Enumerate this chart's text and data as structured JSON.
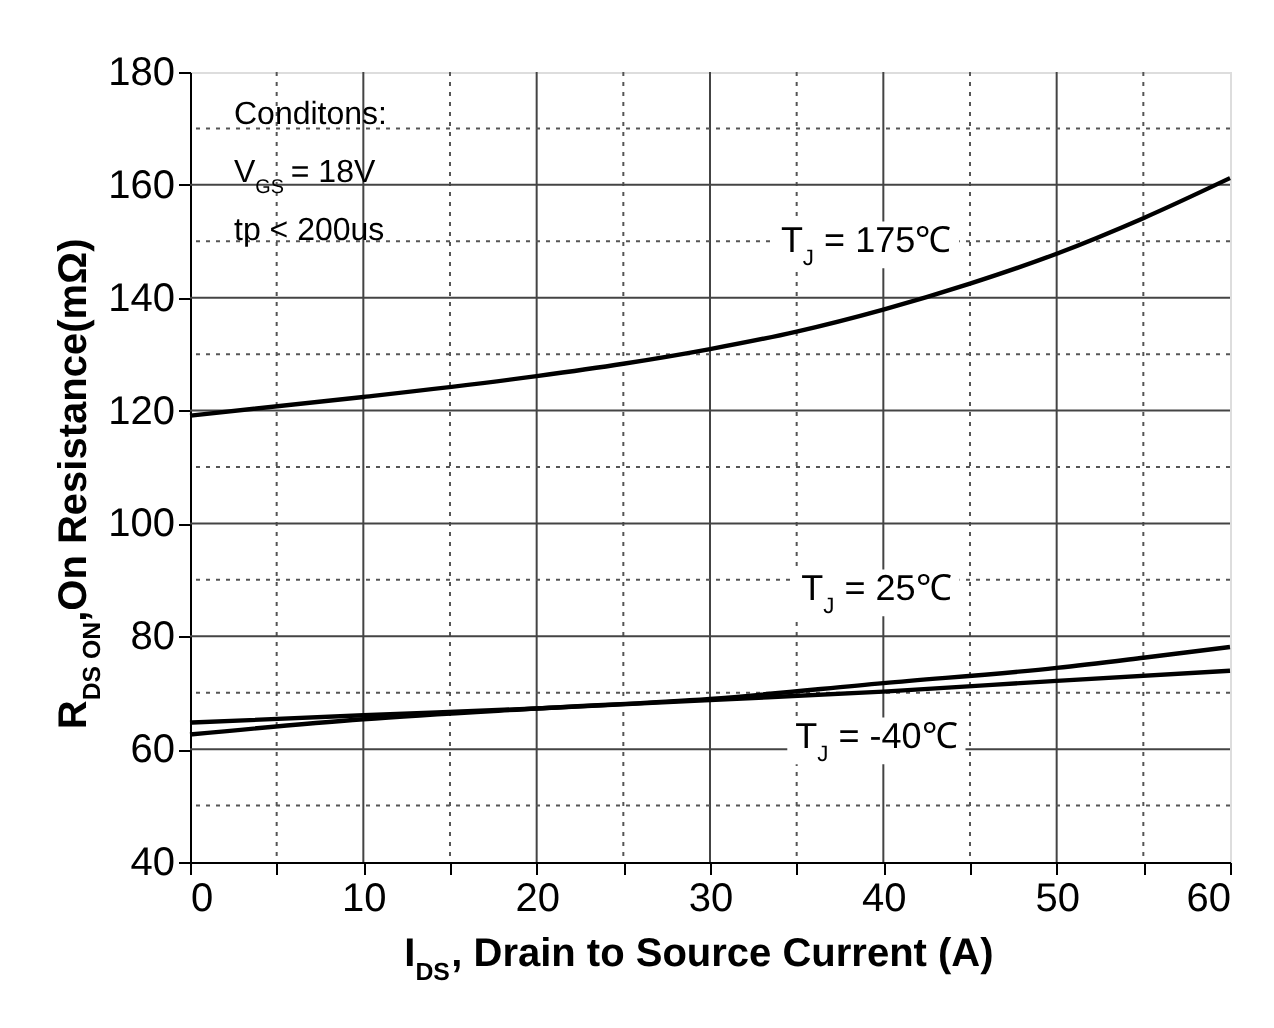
{
  "chart_data": {
    "type": "line",
    "xlabel": "I$_{DS}$, Drain to Source Current  (A)",
    "ylabel": "R$_{DS ON}$,On Resistance(mΩ)",
    "x": [
      0,
      10,
      20,
      25,
      30,
      35,
      40,
      45,
      50,
      55,
      60
    ],
    "series": [
      {
        "color": "#000000",
        "values": [
          119.1,
          122.4,
          126.1,
          128.3,
          130.9,
          134.0,
          137.9,
          142.5,
          147.8,
          154.1,
          161.2
        ]
      },
      {
        "color": "#000000",
        "x": [
          0,
          10,
          20,
          30,
          40,
          50,
          55,
          60
        ],
        "values": [
          62.6,
          65.3,
          67.2,
          68.9,
          71.7,
          74.4,
          76.2,
          78.1
        ]
      },
      {
        "color": "#000000",
        "x": [
          0,
          10,
          20,
          30,
          40,
          50,
          60
        ],
        "values": [
          64.7,
          66.0,
          67.2,
          68.7,
          70.2,
          72.1,
          73.9
        ]
      }
    ],
    "xlim": [
      0,
      60
    ],
    "xticks": [
      0,
      {
        "value": 5,
        "label": null
      },
      10,
      {
        "value": 15,
        "label": null
      },
      20,
      {
        "value": 25,
        "label": null
      },
      30,
      {
        "value": 35,
        "label": null
      },
      40,
      {
        "value": 45,
        "label": null
      },
      50,
      {
        "value": 55,
        "label": null
      },
      60
    ],
    "ylim": [
      40,
      180
    ],
    "yticks": [
      40,
      {
        "value": 50,
        "label": null
      },
      60,
      {
        "value": 70,
        "label": null
      },
      80,
      {
        "value": 90,
        "label": null
      },
      100,
      {
        "value": 110,
        "label": null
      },
      120,
      {
        "value": 130,
        "label": null
      },
      140,
      {
        "value": 150,
        "label": null
      },
      160,
      {
        "value": 170,
        "label": null
      },
      180
    ],
    "grid": true,
    "line_style": "solid",
    "marker": "none",
    "annotations": [
      "T$_{J}$ = 175℃",
      "T$_{J}$ = 25℃",
      "T$_{J}$ = -40℃",
      "Conditons:",
      "V$_{GS}$ = 18V",
      "tp < 200us"
    ]
  }
}
